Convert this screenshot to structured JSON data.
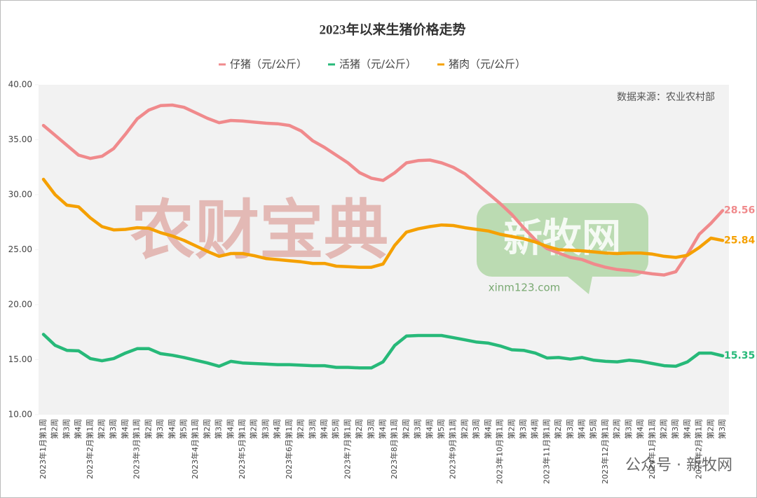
{
  "chart_data": {
    "type": "line",
    "title": "2023年以来生猪价格走势",
    "annotation": "数据来源：农业农村部",
    "watermarks": [
      "农财宝典",
      "新牧网",
      "xinm123.com",
      "公众号 · 新牧网"
    ],
    "categories": [
      "2023年1月第1周",
      "第2周",
      "第3周",
      "第4周",
      "2023年2月第1周",
      "第2周",
      "第3周",
      "第4周",
      "2023年3月第1周",
      "第2周",
      "第3周",
      "第4周",
      "第5周",
      "2023年4月第1周",
      "第2周",
      "第3周",
      "第4周",
      "2023年5月第1周",
      "第2周",
      "第3周",
      "第4周",
      "2023年6月第1周",
      "第2周",
      "第3周",
      "第4周",
      "第5周",
      "2023年7月第1周",
      "第2周",
      "第3周",
      "第4周",
      "2023年8月第1周",
      "第2周",
      "第3周",
      "第4周",
      "第5周",
      "2023年9月第1周",
      "第2周",
      "第3周",
      "第4周",
      "2023年10月第1周",
      "第2周",
      "第3周",
      "第4周",
      "2023年11月第1周",
      "第2周",
      "第3周",
      "第4周",
      "第5周",
      "2023年12月第1周",
      "第2周",
      "第3周",
      "第4周",
      "2024年1月第1周",
      "第2周",
      "第3周",
      "第4周",
      "2024年2月第1周",
      "第2周",
      "第3周"
    ],
    "series": [
      {
        "name": "仔猪（元/公斤）",
        "color": "#f08a8c",
        "values": [
          36.3,
          35.4,
          34.5,
          33.6,
          33.3,
          33.5,
          34.2,
          35.5,
          36.9,
          37.7,
          38.1,
          38.15,
          37.95,
          37.45,
          36.95,
          36.55,
          36.75,
          36.7,
          36.6,
          36.5,
          36.45,
          36.3,
          35.8,
          34.9,
          34.3,
          33.6,
          32.9,
          32.0,
          31.5,
          31.3,
          32.0,
          32.9,
          33.1,
          33.15,
          32.9,
          32.5,
          31.9,
          31.0,
          30.1,
          29.2,
          28.2,
          27.0,
          25.9,
          25.1,
          24.7,
          24.3,
          24.1,
          23.7,
          23.4,
          23.2,
          23.1,
          22.95,
          22.8,
          22.7,
          23.0,
          24.6,
          26.4,
          27.4,
          28.56
        ]
      },
      {
        "name": "活猪（元/公斤）",
        "color": "#27b979",
        "values": [
          17.3,
          16.3,
          15.85,
          15.8,
          15.1,
          14.9,
          15.1,
          15.6,
          16.0,
          16.0,
          15.55,
          15.4,
          15.2,
          14.95,
          14.7,
          14.4,
          14.85,
          14.7,
          14.65,
          14.6,
          14.55,
          14.55,
          14.5,
          14.45,
          14.45,
          14.3,
          14.3,
          14.25,
          14.25,
          14.8,
          16.3,
          17.15,
          17.2,
          17.2,
          17.2,
          17.0,
          16.8,
          16.6,
          16.5,
          16.25,
          15.9,
          15.85,
          15.6,
          15.15,
          15.2,
          15.05,
          15.2,
          14.95,
          14.85,
          14.8,
          14.95,
          14.85,
          14.65,
          14.45,
          14.4,
          14.8,
          15.6,
          15.6,
          15.35
        ]
      },
      {
        "name": "猪肉（元/公斤）",
        "color": "#f5a000",
        "values": [
          31.4,
          30.0,
          29.05,
          28.9,
          27.9,
          27.1,
          26.8,
          26.85,
          27.0,
          26.95,
          26.55,
          26.25,
          25.85,
          25.35,
          24.85,
          24.4,
          24.65,
          24.65,
          24.45,
          24.2,
          24.1,
          24.0,
          23.9,
          23.75,
          23.75,
          23.5,
          23.45,
          23.4,
          23.4,
          23.7,
          25.4,
          26.6,
          26.9,
          27.1,
          27.25,
          27.2,
          27.0,
          26.85,
          26.7,
          26.4,
          26.2,
          26.0,
          25.7,
          25.3,
          25.0,
          24.95,
          24.9,
          24.8,
          24.7,
          24.65,
          24.7,
          24.7,
          24.6,
          24.4,
          24.3,
          24.5,
          25.2,
          26.05,
          25.84
        ]
      }
    ],
    "ylim": [
      10,
      40
    ],
    "yticks": [
      {
        "value": 10,
        "label": "10.00"
      },
      {
        "value": 15,
        "label": "15.00"
      },
      {
        "value": 20,
        "label": "20.00"
      },
      {
        "value": 25,
        "label": "25.00"
      },
      {
        "value": 30,
        "label": "30.00"
      },
      {
        "value": 35,
        "label": "35.00"
      },
      {
        "value": 40,
        "label": "40.00"
      }
    ],
    "legend": "top",
    "end_labels": true
  }
}
